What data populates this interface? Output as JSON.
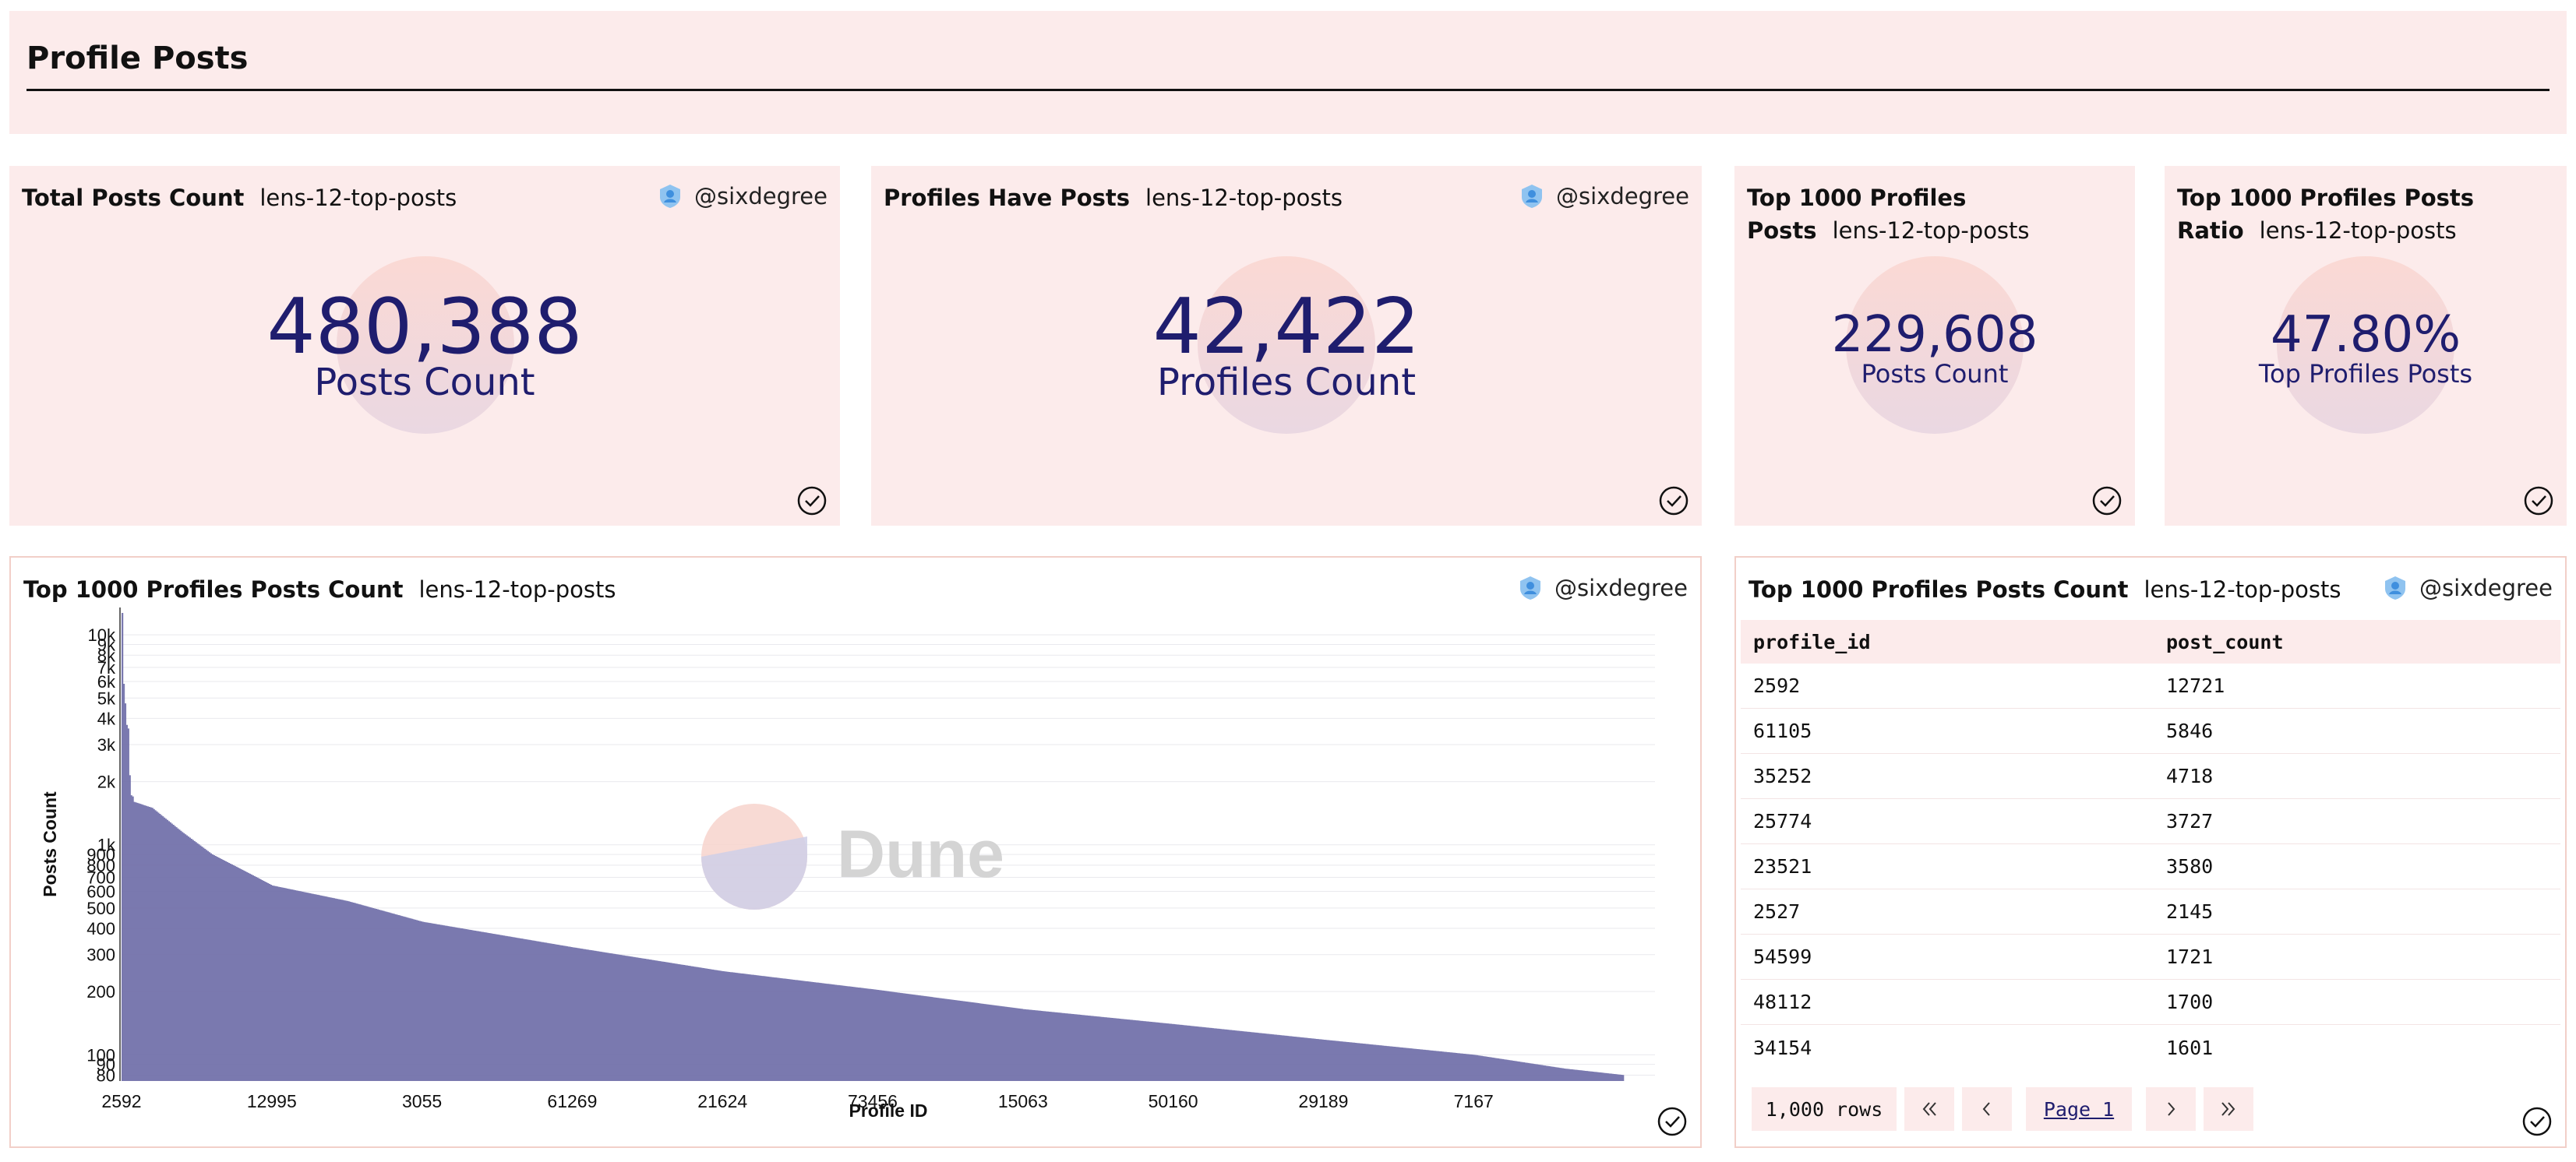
{
  "header": {
    "title": "Profile Posts"
  },
  "author": "@sixdegree",
  "counters": [
    {
      "name": "Total Posts Count",
      "query": "lens-12-top-posts",
      "value": "480,388",
      "label": "Posts Count"
    },
    {
      "name": "Profiles Have Posts",
      "query": "lens-12-top-posts",
      "value": "42,422",
      "label": "Profiles Count"
    },
    {
      "name": "Top 1000 Profiles Posts",
      "query": "lens-12-top-posts",
      "value": "229,608",
      "label": "Posts Count"
    },
    {
      "name": "Top 1000 Profiles Posts Ratio",
      "query": "lens-12-top-posts",
      "value": "47.80%",
      "label": "Top Profiles Posts"
    }
  ],
  "chart_panel": {
    "name": "Top 1000 Profiles Posts Count",
    "query": "lens-12-top-posts",
    "watermark": "Dune"
  },
  "table_panel": {
    "name": "Top 1000 Profiles Posts Count",
    "query": "lens-12-top-posts",
    "columns": [
      "profile_id",
      "post_count"
    ],
    "rows": [
      [
        "2592",
        "12721"
      ],
      [
        "61105",
        "5846"
      ],
      [
        "35252",
        "4718"
      ],
      [
        "25774",
        "3727"
      ],
      [
        "23521",
        "3580"
      ],
      [
        "2527",
        "2145"
      ],
      [
        "54599",
        "1721"
      ],
      [
        "48112",
        "1700"
      ],
      [
        "34154",
        "1601"
      ]
    ],
    "pagination": {
      "rows_label": "1,000 rows",
      "page_label": "Page 1",
      "first": "«",
      "prev": "‹",
      "next": "›",
      "last": "»"
    }
  },
  "colors": {
    "panel_bg": "#fcebeb",
    "bar": "#6f6ea8",
    "number": "#1f1d6e"
  },
  "chart_data": {
    "type": "bar",
    "xlabel": "Profile ID",
    "ylabel": "Posts Count",
    "yscale": "log",
    "ylim": [
      75,
      13500
    ],
    "x_tick_labels": [
      "2592",
      "12995",
      "3055",
      "61269",
      "21624",
      "73456",
      "15063",
      "50160",
      "29189",
      "7167"
    ],
    "y_tick_labels": [
      "80",
      "90",
      "100",
      "200",
      "300",
      "400",
      "500",
      "600",
      "700",
      "800",
      "900",
      "1k",
      "2k",
      "3k",
      "4k",
      "5k",
      "6k",
      "7k",
      "8k",
      "9k",
      "10k"
    ],
    "y_tick_values": [
      80,
      90,
      100,
      200,
      300,
      400,
      500,
      600,
      700,
      800,
      900,
      1000,
      2000,
      3000,
      4000,
      5000,
      6000,
      7000,
      8000,
      9000,
      10000
    ],
    "bar_count": 1000,
    "profile_points": [
      [
        0,
        12721
      ],
      [
        1,
        5846
      ],
      [
        2,
        4718
      ],
      [
        3,
        3727
      ],
      [
        4,
        3580
      ],
      [
        5,
        2145
      ],
      [
        6,
        1721
      ],
      [
        7,
        1700
      ],
      [
        8,
        1601
      ],
      [
        20,
        1500
      ],
      [
        40,
        1150
      ],
      [
        60,
        900
      ],
      [
        80,
        760
      ],
      [
        100,
        640
      ],
      [
        150,
        540
      ],
      [
        200,
        430
      ],
      [
        300,
        325
      ],
      [
        400,
        250
      ],
      [
        500,
        205
      ],
      [
        600,
        165
      ],
      [
        700,
        140
      ],
      [
        800,
        118
      ],
      [
        900,
        100
      ],
      [
        960,
        86
      ],
      [
        1000,
        80
      ]
    ],
    "grid": true,
    "legend": "none"
  }
}
